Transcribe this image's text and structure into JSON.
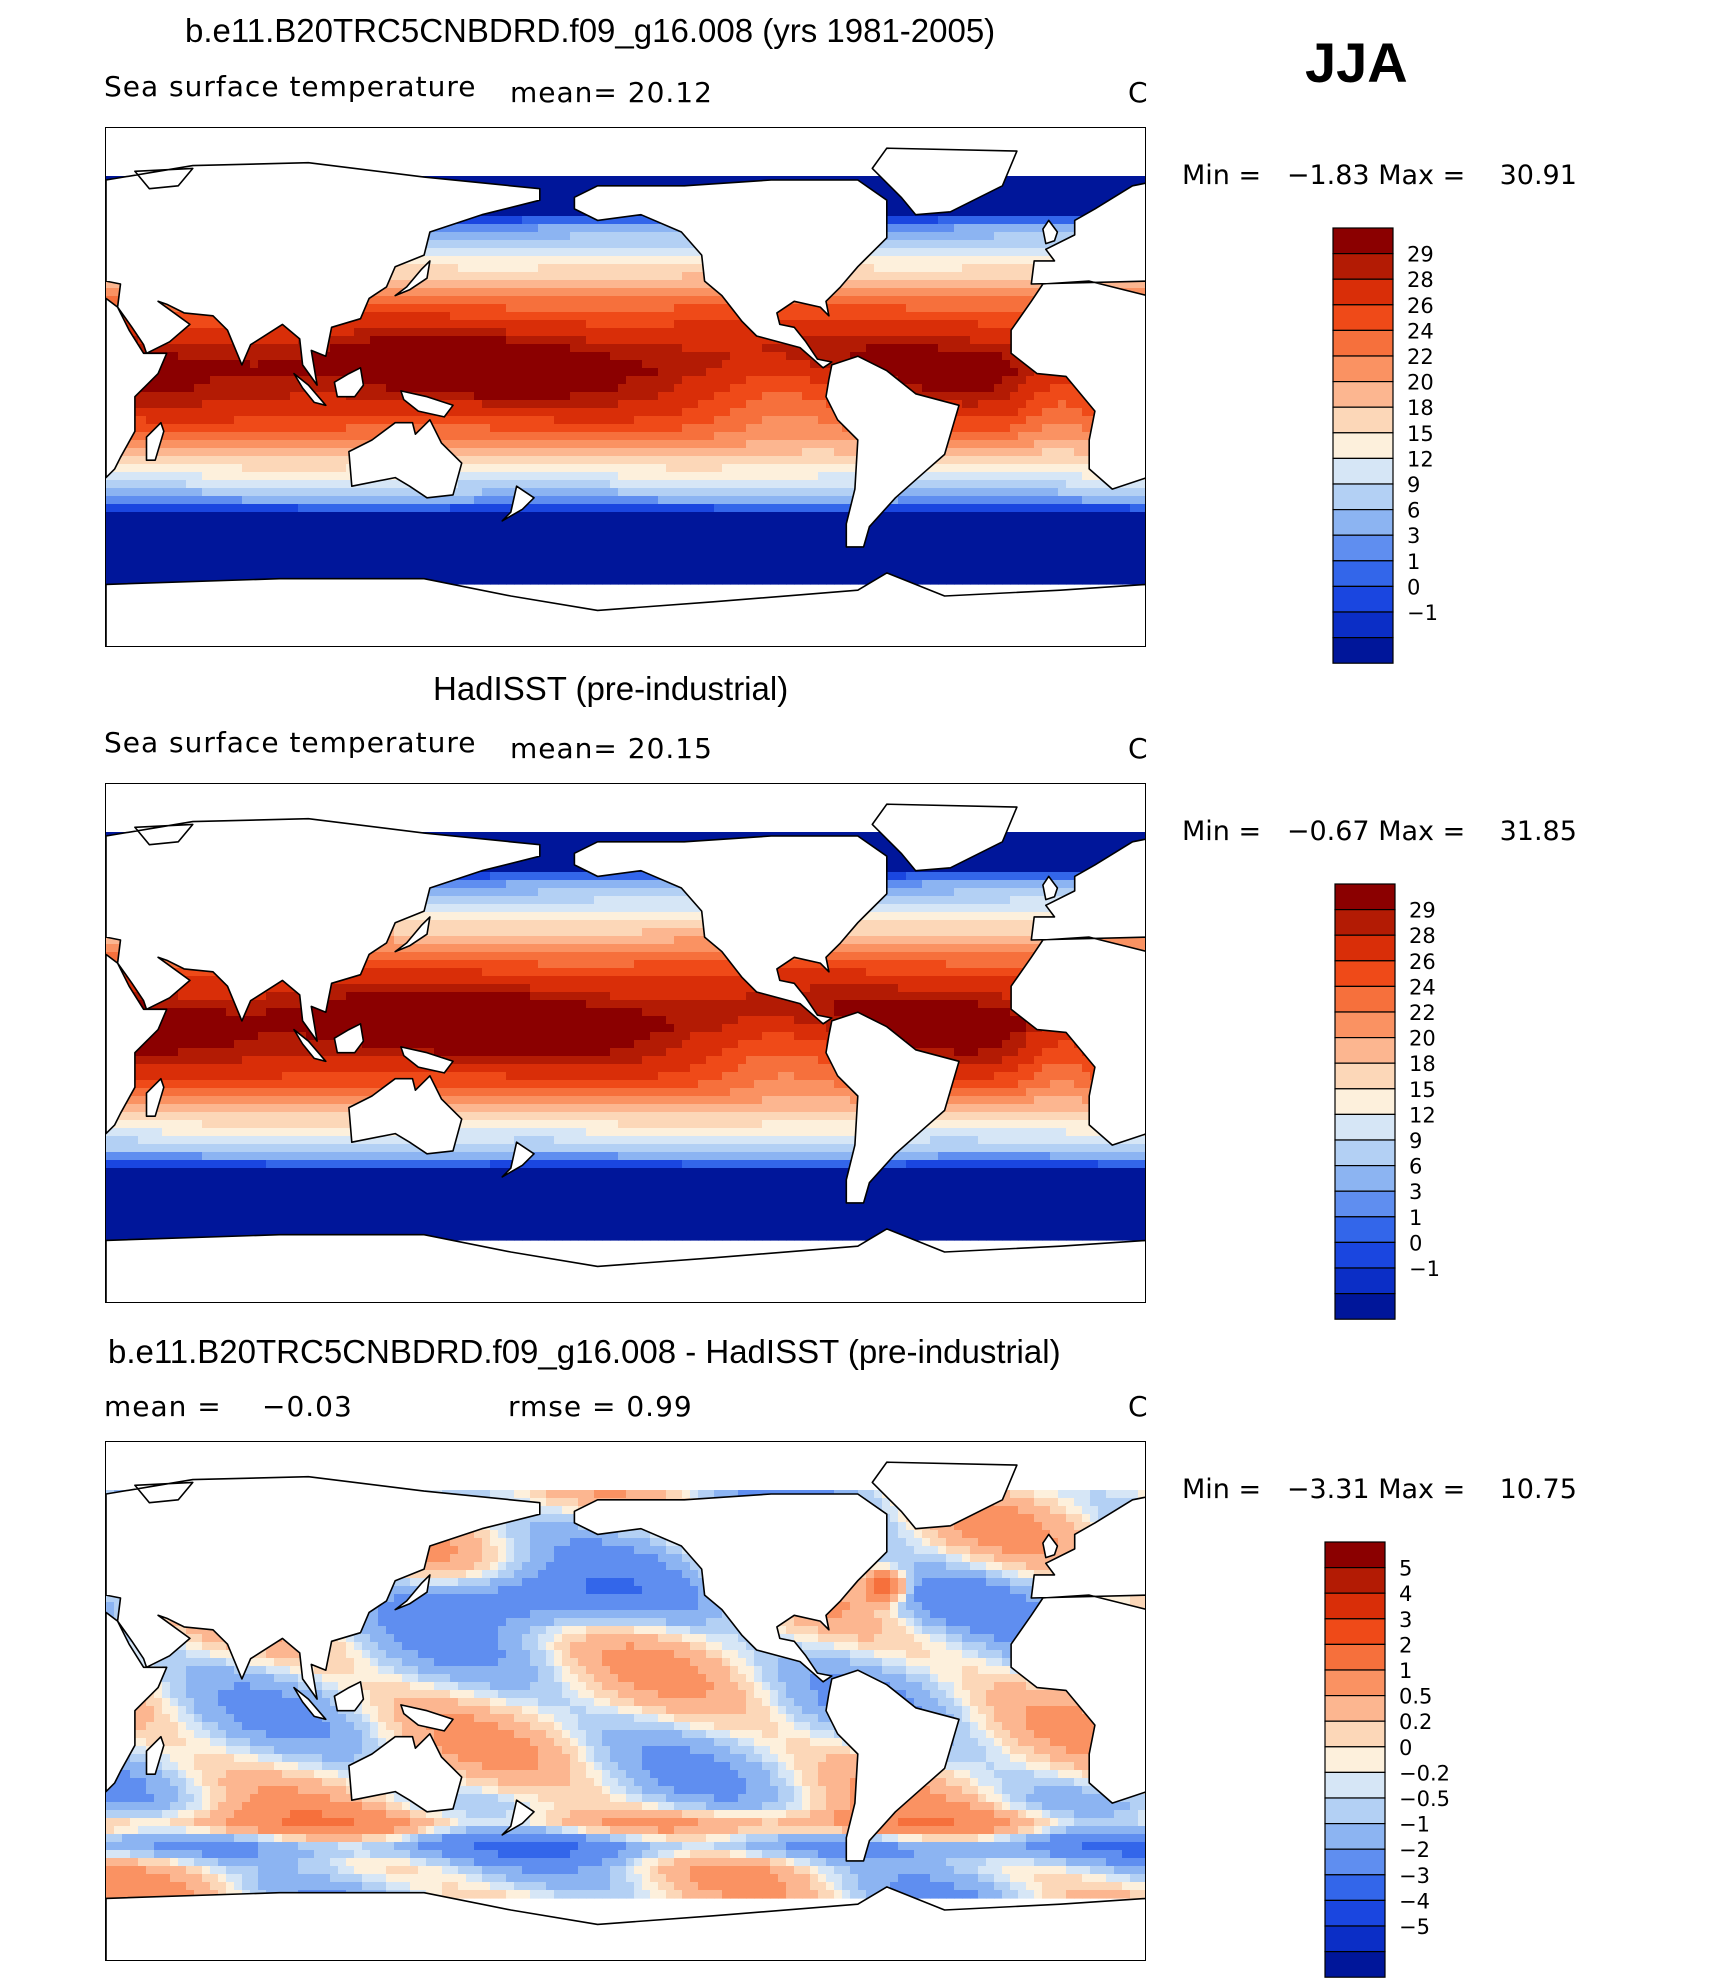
{
  "season": "JJA",
  "panels": [
    {
      "title": "b.e11.B20TRC5CNBDRD.f09_g16.008 (yrs 1981-2005)",
      "left_label": "Sea surface temperature",
      "stat1": "mean=   20.12",
      "stat2": "",
      "units": "C",
      "minmax": {
        "min_label": "Min  =",
        "min": "−1.83",
        "max_label": "Max  =",
        "max": "30.91"
      },
      "palette": "abs"
    },
    {
      "title": "HadISST (pre-industrial)",
      "left_label": "Sea surface temperature",
      "stat1": "mean=   20.15",
      "stat2": "",
      "units": "C",
      "minmax": {
        "min_label": "Min  =",
        "min": "−0.67",
        "max_label": "Max  =",
        "max": "31.85"
      },
      "palette": "abs"
    },
    {
      "title": "b.e11.B20TRC5CNBDRD.f09_g16.008 - HadISST (pre-industrial)",
      "left_label": "mean  =",
      "stat1": "−0.03",
      "stat2": "rmse  =     0.99",
      "units": "C",
      "minmax": {
        "min_label": "Min  =",
        "min": "−3.31",
        "max_label": "Max  =",
        "max": "10.75"
      },
      "palette": "diff"
    }
  ],
  "colorbars": {
    "abs": {
      "labels": [
        "29",
        "28",
        "26",
        "24",
        "22",
        "20",
        "18",
        "15",
        "12",
        "9",
        "6",
        "3",
        "1",
        "0",
        "−1"
      ],
      "colors": [
        "#8b0000",
        "#b31b04",
        "#d92e08",
        "#ef4a18",
        "#f6703c",
        "#fa9262",
        "#fcb690",
        "#fcd7b8",
        "#fdf0dc",
        "#d6e6f6",
        "#b3d0f4",
        "#8cb4f2",
        "#5f8ef0",
        "#3366ea",
        "#1a46e0",
        "#0b2ec6",
        "#00169a"
      ]
    },
    "diff": {
      "labels": [
        "5",
        "4",
        "3",
        "2",
        "1",
        "0.5",
        "0.2",
        "0",
        "−0.2",
        "−0.5",
        "−1",
        "−2",
        "−3",
        "−4",
        "−5"
      ],
      "colors": [
        "#8b0000",
        "#b31b04",
        "#d92e08",
        "#ef4a18",
        "#f6703c",
        "#fa9262",
        "#fcb690",
        "#fcd7b8",
        "#fdf0dc",
        "#d6e6f6",
        "#b3d0f4",
        "#8cb4f2",
        "#5f8ef0",
        "#3366ea",
        "#1a46e0",
        "#0b2ec6",
        "#00169a"
      ]
    }
  },
  "chart_data": [
    {
      "type": "heatmap",
      "title": "b.e11.B20TRC5CNBDRD.f09_g16.008 (yrs 1981-2005)",
      "variable": "Sea surface temperature",
      "units": "C",
      "mean": 20.12,
      "min": -1.83,
      "max": 30.91,
      "levels": [
        -1,
        0,
        1,
        3,
        6,
        9,
        12,
        15,
        18,
        20,
        22,
        24,
        26,
        28,
        29
      ]
    },
    {
      "type": "heatmap",
      "title": "HadISST (pre-industrial)",
      "variable": "Sea surface temperature",
      "units": "C",
      "mean": 20.15,
      "min": -0.67,
      "max": 31.85,
      "levels": [
        -1,
        0,
        1,
        3,
        6,
        9,
        12,
        15,
        18,
        20,
        22,
        24,
        26,
        28,
        29
      ]
    },
    {
      "type": "heatmap",
      "title": "b.e11.B20TRC5CNBDRD.f09_g16.008 - HadISST (pre-industrial)",
      "units": "C",
      "mean": -0.03,
      "rmse": 0.99,
      "min": -3.31,
      "max": 10.75,
      "levels": [
        -5,
        -4,
        -3,
        -2,
        -1,
        -0.5,
        -0.2,
        0,
        0.2,
        0.5,
        1,
        2,
        3,
        4,
        5
      ]
    }
  ]
}
